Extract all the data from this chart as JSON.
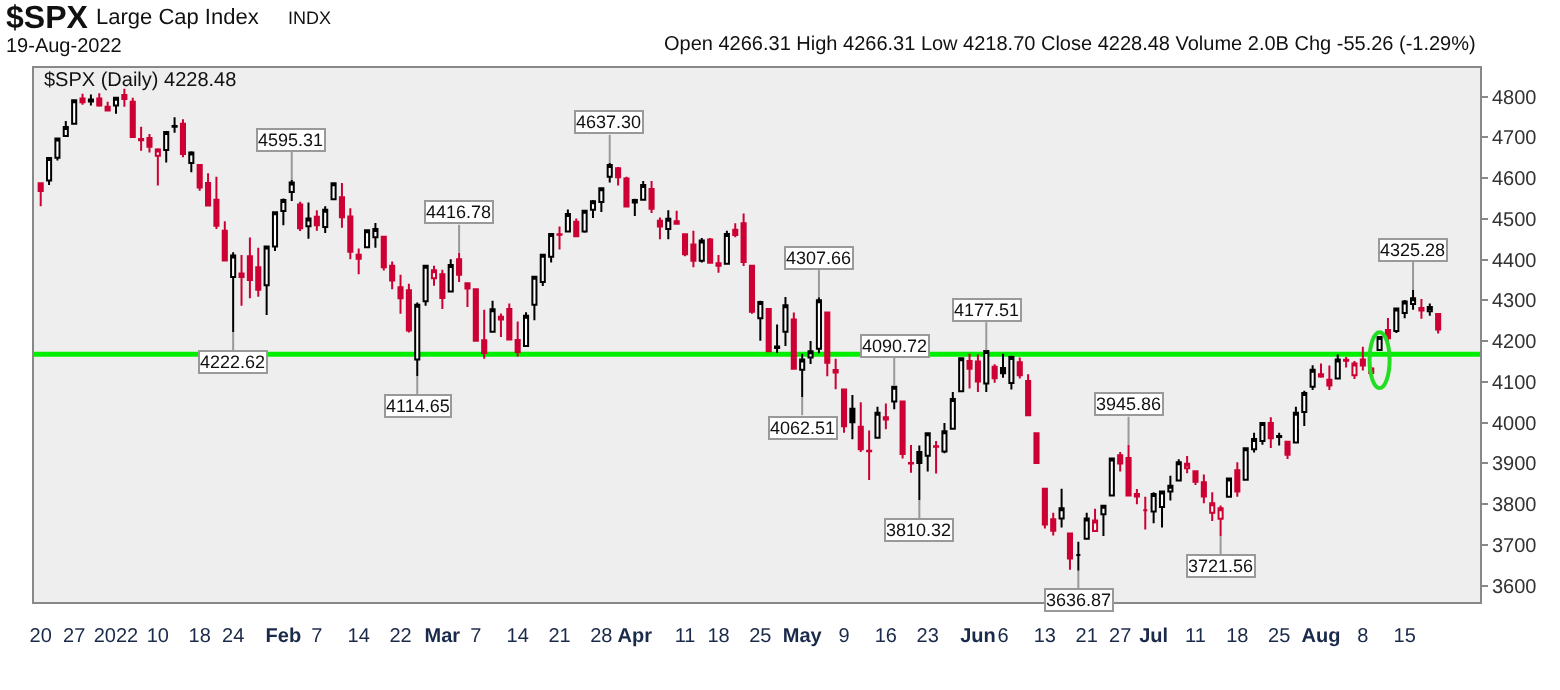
{
  "chart_data": {
    "type": "candlestick",
    "title": "$SPX",
    "subtitle": "Large Cap Index",
    "annotations": [
      "INDX",
      "19-Aug-2022",
      "Open 4266.31 High 4266.31 Low 4218.70 Close 4228.48 Volume 2.0B Chg -55.26 (-1.29%)",
      "$SPX (Daily) 4228.48",
      {
        "text": "4595.31",
        "y": 4595.31
      },
      {
        "text": "4222.62",
        "y": 4222.62
      },
      {
        "text": "4416.78",
        "y": 4416.78
      },
      {
        "text": "4114.65",
        "y": 4114.65
      },
      {
        "text": "4637.30",
        "y": 4637.3
      },
      {
        "text": "4307.66",
        "y": 4307.66
      },
      {
        "text": "4062.51",
        "y": 4062.51
      },
      {
        "text": "4090.72",
        "y": 4090.72
      },
      {
        "text": "3810.32",
        "y": 3810.32
      },
      {
        "text": "4177.51",
        "y": 4177.51
      },
      {
        "text": "3636.87",
        "y": 3636.87
      },
      {
        "text": "3945.86",
        "y": 3945.86
      },
      {
        "text": "3721.56",
        "y": 3721.56
      },
      {
        "text": "4325.28",
        "y": 4325.28
      }
    ],
    "categories": [
      "20",
      null,
      null,
      null,
      "27",
      null,
      null,
      null,
      null,
      "2022",
      null,
      null,
      null,
      null,
      "10",
      null,
      null,
      null,
      null,
      "18",
      null,
      null,
      null,
      "24",
      null,
      null,
      null,
      null,
      null,
      "Feb",
      null,
      null,
      null,
      "7",
      null,
      null,
      null,
      null,
      "14",
      null,
      null,
      null,
      null,
      "22",
      null,
      null,
      null,
      null,
      "Mar",
      null,
      null,
      null,
      "7",
      null,
      null,
      null,
      null,
      "14",
      null,
      null,
      null,
      null,
      "21",
      null,
      null,
      null,
      null,
      "28",
      null,
      null,
      null,
      "Apr",
      null,
      null,
      null,
      null,
      null,
      "11",
      null,
      null,
      null,
      "18",
      null,
      null,
      null,
      null,
      "25",
      null,
      null,
      null,
      null,
      "May",
      null,
      null,
      null,
      null,
      "9",
      null,
      null,
      null,
      null,
      "16",
      null,
      null,
      null,
      null,
      "23",
      null,
      null,
      null,
      null,
      null,
      "Jun",
      null,
      null,
      "6",
      null,
      null,
      null,
      null,
      "13",
      null,
      null,
      null,
      null,
      "21",
      null,
      null,
      null,
      "27",
      null,
      null,
      null,
      "Jul",
      null,
      null,
      null,
      null,
      "11",
      null,
      null,
      null,
      null,
      "18",
      null,
      null,
      null,
      null,
      "25",
      null,
      null,
      null,
      null,
      "Aug",
      null,
      null,
      null,
      null,
      "8",
      null,
      null,
      null,
      null,
      "15",
      null,
      null,
      null,
      null
    ],
    "ohlc": [
      [
        4587,
        4587,
        4531,
        4568
      ],
      [
        4594,
        4651,
        4583,
        4649
      ],
      [
        4650,
        4697,
        4643,
        4697
      ],
      [
        4703,
        4740,
        4703,
        4725
      ],
      [
        4733,
        4791,
        4733,
        4791
      ],
      [
        4795,
        4807,
        4780,
        4786
      ],
      [
        4788,
        4805,
        4778,
        4793
      ],
      [
        4795,
        4808,
        4775,
        4778
      ],
      [
        4775,
        4787,
        4765,
        4766
      ],
      [
        4778,
        4797,
        4758,
        4797
      ],
      [
        4804,
        4819,
        4775,
        4794
      ],
      [
        4787,
        4797,
        4699,
        4701
      ],
      [
        4693,
        4726,
        4667,
        4696
      ],
      [
        4698,
        4708,
        4663,
        4677
      ],
      [
        4655,
        4673,
        4582,
        4670
      ],
      [
        4669,
        4714,
        4638,
        4713
      ],
      [
        4728,
        4749,
        4711,
        4726
      ],
      [
        4733,
        4744,
        4651,
        4659
      ],
      [
        4637,
        4666,
        4614,
        4663
      ],
      [
        4632,
        4632,
        4569,
        4577
      ],
      [
        4588,
        4612,
        4532,
        4533
      ],
      [
        4547,
        4603,
        4475,
        4483
      ],
      [
        4471,
        4494,
        4396,
        4398
      ],
      [
        4357,
        4418,
        4222.62,
        4410
      ],
      [
        4366,
        4411,
        4287,
        4357
      ],
      [
        4408,
        4454,
        4305,
        4350
      ],
      [
        4381,
        4429,
        4309,
        4326
      ],
      [
        4337,
        4432,
        4264,
        4432
      ],
      [
        4432,
        4517,
        4421,
        4516
      ],
      [
        4519,
        4550,
        4484,
        4546
      ],
      [
        4566,
        4595.31,
        4544,
        4589
      ],
      [
        4535,
        4542,
        4470,
        4477
      ],
      [
        4482,
        4540,
        4451,
        4501
      ],
      [
        4505,
        4521,
        4471,
        4484
      ],
      [
        4480,
        4531,
        4465,
        4522
      ],
      [
        4548,
        4590,
        4548,
        4587
      ],
      [
        4553,
        4588,
        4478,
        4504
      ],
      [
        4506,
        4526,
        4401,
        4419
      ],
      [
        4412,
        4427,
        4364,
        4402
      ],
      [
        4430,
        4472,
        4429,
        4472
      ],
      [
        4455,
        4490,
        4429,
        4475
      ],
      [
        4456,
        4456,
        4373,
        4381
      ],
      [
        4385,
        4395,
        4327,
        4349
      ],
      [
        4332,
        4363,
        4267,
        4305
      ],
      [
        4325,
        4341,
        4221,
        4226
      ],
      [
        4155,
        4295,
        4114.65,
        4289
      ],
      [
        4298,
        4385,
        4287,
        4385
      ],
      [
        4354,
        4385,
        4336,
        4374
      ],
      [
        4364,
        4375,
        4279,
        4306
      ],
      [
        4322,
        4401,
        4322,
        4387
      ],
      [
        4401,
        4416.78,
        4345,
        4363
      ],
      [
        4342,
        4343,
        4284,
        4329
      ],
      [
        4327,
        4327,
        4199,
        4201
      ],
      [
        4202,
        4277,
        4157,
        4171
      ],
      [
        4223,
        4299,
        4223,
        4278
      ],
      [
        4253,
        4268,
        4210,
        4260
      ],
      [
        4279,
        4292,
        4203,
        4204
      ],
      [
        4203,
        4248,
        4162,
        4173
      ],
      [
        4188,
        4271,
        4188,
        4262
      ],
      [
        4289,
        4358,
        4251,
        4358
      ],
      [
        4345,
        4412,
        4335,
        4412
      ],
      [
        4407,
        4465,
        4393,
        4463
      ],
      [
        4462,
        4481,
        4425,
        4461
      ],
      [
        4469,
        4523,
        4469,
        4512
      ],
      [
        4493,
        4501,
        4456,
        4457
      ],
      [
        4469,
        4520,
        4466,
        4520
      ],
      [
        4522,
        4546,
        4502,
        4543
      ],
      [
        4541,
        4575,
        4517,
        4575
      ],
      [
        4603,
        4637.3,
        4589,
        4632
      ],
      [
        4624,
        4627,
        4582,
        4602
      ],
      [
        4599,
        4603,
        4530,
        4530
      ],
      [
        4540,
        4549,
        4507,
        4546
      ],
      [
        4547,
        4593,
        4546,
        4583
      ],
      [
        4573,
        4593,
        4514,
        4525
      ],
      [
        4495,
        4503,
        4450,
        4481
      ],
      [
        4475,
        4521,
        4450,
        4500
      ],
      [
        4494,
        4520,
        4487,
        4488
      ],
      [
        4462,
        4464,
        4408,
        4413
      ],
      [
        4437,
        4471,
        4381,
        4397
      ],
      [
        4397,
        4453,
        4393,
        4447
      ],
      [
        4449,
        4453,
        4392,
        4392
      ],
      [
        4385,
        4411,
        4368,
        4391
      ],
      [
        4390,
        4471,
        4388,
        4463
      ],
      [
        4473,
        4489,
        4455,
        4460
      ],
      [
        4489,
        4513,
        4384,
        4394
      ],
      [
        4385,
        4386,
        4267,
        4272
      ],
      [
        4256,
        4299,
        4201,
        4296
      ],
      [
        4279,
        4279,
        4175,
        4175
      ],
      [
        4187,
        4241,
        4171,
        4183
      ],
      [
        4223,
        4308,
        4188,
        4288
      ],
      [
        4253,
        4270,
        4131,
        4132
      ],
      [
        4130,
        4169,
        4062.51,
        4155
      ],
      [
        4160,
        4200,
        4144,
        4175
      ],
      [
        4181,
        4307.66,
        4170,
        4300
      ],
      [
        4270,
        4270,
        4114,
        4147
      ],
      [
        4129,
        4157,
        4082,
        4123
      ],
      [
        4081,
        4081,
        3975,
        3991
      ],
      [
        4034,
        4068,
        3959,
        4001
      ],
      [
        3990,
        4050,
        3928,
        3935
      ],
      [
        3931,
        3981,
        3859,
        3930
      ],
      [
        3963,
        4039,
        3963,
        4024
      ],
      [
        4013,
        4047,
        3984,
        4008
      ],
      [
        4052,
        4090.72,
        4033,
        4088
      ],
      [
        4052,
        4052,
        3912,
        3923
      ],
      [
        3900,
        3945,
        3877,
        3901
      ],
      [
        3928,
        3944,
        3810.32,
        3901
      ],
      [
        3919,
        3975,
        3880,
        3974
      ],
      [
        3942,
        3955,
        3875,
        3941
      ],
      [
        3929,
        3999,
        3925,
        3979
      ],
      [
        3985,
        4075,
        3984,
        4058
      ],
      [
        4077,
        4158,
        4077,
        4158
      ],
      [
        4151,
        4169,
        4084,
        4132
      ],
      [
        4150,
        4167,
        4075,
        4101
      ],
      [
        4096,
        4177.51,
        4075,
        4176
      ],
      [
        4137,
        4143,
        4098,
        4109
      ],
      [
        4134,
        4169,
        4110,
        4121
      ],
      [
        4097,
        4164,
        4081,
        4161
      ],
      [
        4148,
        4160,
        4108,
        4116
      ],
      [
        4102,
        4119,
        4018,
        4018
      ],
      [
        3974,
        3975,
        3901,
        3901
      ],
      [
        3838,
        3839,
        3740,
        3750
      ],
      [
        3763,
        3779,
        3723,
        3735
      ],
      [
        3765,
        3838,
        3743,
        3790
      ],
      [
        3728,
        3728,
        3639,
        3667
      ],
      [
        3675,
        3708,
        3636.87,
        3675
      ],
      [
        3715,
        3779,
        3715,
        3765
      ],
      [
        3734,
        3789,
        3733,
        3760
      ],
      [
        3775,
        3797,
        3722,
        3796
      ],
      [
        3821,
        3913,
        3821,
        3912
      ],
      [
        3920,
        3928,
        3880,
        3900
      ],
      [
        3913,
        3945.86,
        3820,
        3821
      ],
      [
        3825,
        3837,
        3800,
        3819
      ],
      [
        3785,
        3818,
        3738,
        3785
      ],
      [
        3782,
        3829,
        3753,
        3825
      ],
      [
        3793,
        3832,
        3743,
        3831
      ],
      [
        3831,
        3870,
        3809,
        3845
      ],
      [
        3858,
        3910,
        3858,
        3903
      ],
      [
        3888,
        3918,
        3876,
        3899
      ],
      [
        3881,
        3881,
        3847,
        3855
      ],
      [
        3854,
        3873,
        3802,
        3819
      ],
      [
        3779,
        3829,
        3759,
        3802
      ],
      [
        3764,
        3797,
        3721.56,
        3790
      ],
      [
        3818,
        3863,
        3817,
        3863
      ],
      [
        3883,
        3903,
        3818,
        3831
      ],
      [
        3860,
        3939,
        3860,
        3937
      ],
      [
        3935,
        3975,
        3927,
        3960
      ],
      [
        3955,
        3999,
        3946,
        3999
      ],
      [
        3999,
        4013,
        3938,
        3962
      ],
      [
        3965,
        3975,
        3944,
        3967
      ],
      [
        3953,
        3953,
        3911,
        3921
      ],
      [
        3951,
        4039,
        3951,
        4024
      ],
      [
        4026,
        4078,
        3992,
        4073
      ],
      [
        4088,
        4141,
        4080,
        4130
      ],
      [
        4113,
        4145,
        4110,
        4119
      ],
      [
        4105,
        4140,
        4080,
        4091
      ],
      [
        4108,
        4167,
        4108,
        4155
      ],
      [
        4154,
        4161,
        4135,
        4152
      ],
      [
        4116,
        4151,
        4107,
        4145
      ],
      [
        4155,
        4186,
        4128,
        4140
      ],
      [
        4133,
        4137,
        4112,
        4122
      ],
      [
        4178,
        4211,
        4177,
        4210
      ],
      [
        4227,
        4257,
        4201,
        4207
      ],
      [
        4225,
        4280,
        4220,
        4280
      ],
      [
        4269,
        4301,
        4256,
        4297
      ],
      [
        4291,
        4325.28,
        4277,
        4305
      ],
      [
        4281,
        4303,
        4255,
        4275
      ],
      [
        4273,
        4292,
        4262,
        4284
      ],
      [
        4266.31,
        4266.31,
        4218.7,
        4228.48
      ]
    ],
    "colors": [
      "#cc0033",
      "#000000",
      "#000000",
      "#000000",
      "#000000",
      "#cc0033",
      "#000000",
      "#cc0033",
      "#cc0033",
      "#000000",
      "#cc0033",
      "#cc0033",
      "#cc0033",
      "#cc0033",
      "#cc0033",
      "#000000",
      "#000000",
      "#cc0033",
      "#000000",
      "#cc0033",
      "#cc0033",
      "#cc0033",
      "#cc0033",
      "#000000",
      "#cc0033",
      "#cc0033",
      "#cc0033",
      "#000000",
      "#000000",
      "#000000",
      "#000000",
      "#cc0033",
      "#000000",
      "#cc0033",
      "#000000",
      "#000000",
      "#cc0033",
      "#cc0033",
      "#cc0033",
      "#000000",
      "#000000",
      "#cc0033",
      "#cc0033",
      "#cc0033",
      "#cc0033",
      "#000000",
      "#000000",
      "#cc0033",
      "#cc0033",
      "#000000",
      "#cc0033",
      "#cc0033",
      "#cc0033",
      "#cc0033",
      "#000000",
      "#cc0033",
      "#cc0033",
      "#cc0033",
      "#000000",
      "#000000",
      "#000000",
      "#000000",
      "#cc0033",
      "#000000",
      "#cc0033",
      "#000000",
      "#000000",
      "#000000",
      "#000000",
      "#cc0033",
      "#cc0033",
      "#000000",
      "#000000",
      "#cc0033",
      "#cc0033",
      "#000000",
      "#cc0033",
      "#cc0033",
      "#cc0033",
      "#000000",
      "#cc0033",
      "#cc0033",
      "#000000",
      "#cc0033",
      "#cc0033",
      "#cc0033",
      "#000000",
      "#cc0033",
      "#000000",
      "#000000",
      "#cc0033",
      "#000000",
      "#000000",
      "#000000",
      "#cc0033",
      "#cc0033",
      "#cc0033",
      "#000000",
      "#cc0033",
      "#cc0033",
      "#000000",
      "#cc0033",
      "#000000",
      "#cc0033",
      "#cc0033",
      "#000000",
      "#000000",
      "#cc0033",
      "#000000",
      "#000000",
      "#000000",
      "#cc0033",
      "#cc0033",
      "#000000",
      "#cc0033",
      "#000000",
      "#000000",
      "#cc0033",
      "#cc0033",
      "#cc0033",
      "#cc0033",
      "#cc0033",
      "#000000",
      "#cc0033",
      "#000000",
      "#000000",
      "#cc0033",
      "#000000",
      "#000000",
      "#cc0033",
      "#cc0033",
      "#cc0033",
      "#cc0033",
      "#000000",
      "#000000",
      "#000000",
      "#000000",
      "#cc0033",
      "#cc0033",
      "#cc0033",
      "#cc0033",
      "#cc0033",
      "#000000",
      "#cc0033",
      "#000000",
      "#000000",
      "#000000",
      "#cc0033",
      "#000000",
      "#cc0033",
      "#000000",
      "#000000",
      "#000000",
      "#cc0033",
      "#cc0033",
      "#000000",
      "#cc0033",
      "#cc0033",
      "#cc0033",
      "#cc0033",
      "#000000",
      "#cc0033",
      "#000000",
      "#000000",
      "#000000",
      "#cc0033",
      "#000000",
      "#cc0033"
    ],
    "ylim": [
      3560,
      4870
    ],
    "yticks": [
      3600,
      3700,
      3800,
      3900,
      4000,
      4100,
      4200,
      4300,
      4400,
      4500,
      4600,
      4700,
      4800
    ],
    "ref_lines": [
      {
        "axis": "y",
        "value": 4168,
        "color": "#00ee00"
      }
    ]
  }
}
